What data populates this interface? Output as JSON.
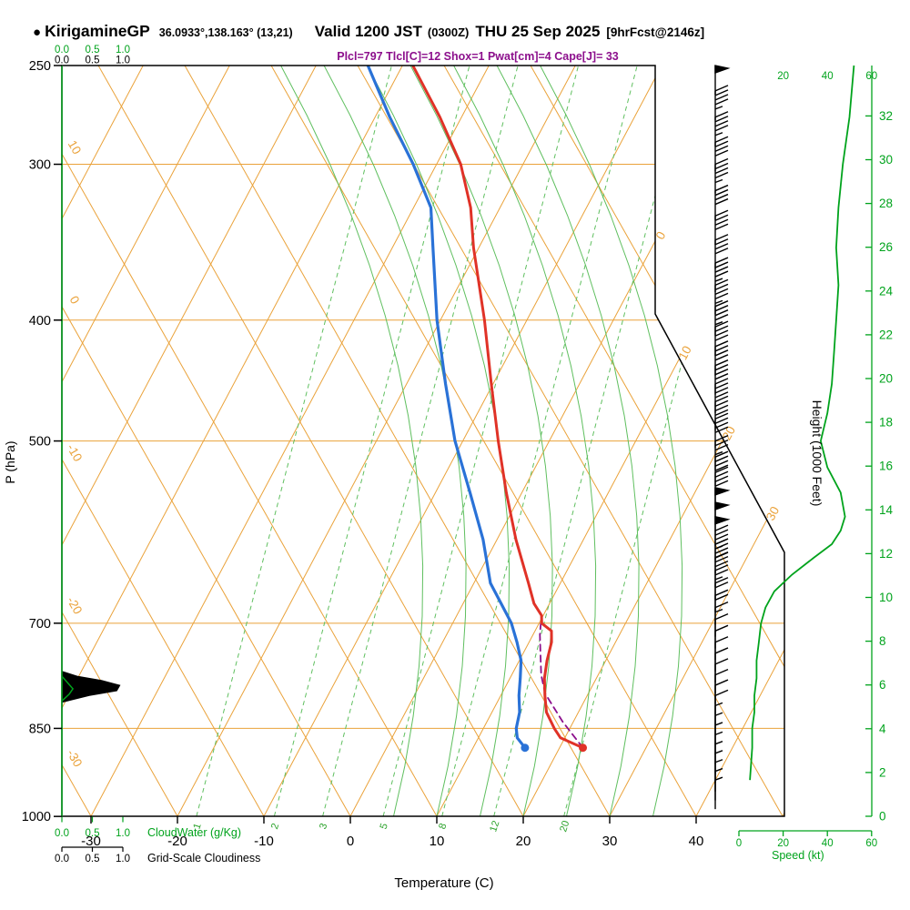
{
  "header": {
    "bullet": "●",
    "station": "KirigamineGP",
    "coords": "36.0933°,138.163° (13,21)",
    "valid": "Valid 1200 JST",
    "valid_z": "(0300Z)",
    "date": "THU 25 Sep 2025",
    "fcst": "[9hrFcst@2146z]",
    "params": "Plcl=797 Tlcl[C]=12 Shox=1 Pwat[cm]=4 Cape[J]= 33"
  },
  "axes": {
    "pressure_title": "P (hPa)",
    "pressure_ticks": [
      250,
      300,
      400,
      500,
      700,
      850,
      1000
    ],
    "temp_title": "Temperature (C)",
    "temp_ticks": [
      -30,
      -20,
      -10,
      0,
      10,
      20,
      30,
      40
    ],
    "height_title": "Height (1000 Feet)",
    "height_ticks": [
      0,
      2,
      4,
      6,
      8,
      10,
      12,
      14,
      16,
      18,
      20,
      22,
      24,
      26,
      28,
      30,
      32
    ],
    "speed_title": "Speed (kt)",
    "speed_ticks": [
      0,
      20,
      40,
      60
    ],
    "speed_ticks_top": [
      20,
      40,
      60
    ],
    "cloudwater_title": "CloudWater (g/Kg)",
    "cloudwater_ticks": [
      "0.0",
      "0.5",
      "1.0"
    ],
    "cloudiness_title": "Grid-Scale Cloudiness",
    "cloudiness_ticks": [
      "0.0",
      "0.5",
      "1.0"
    ],
    "dry_adiabat_labels": [
      10,
      0,
      -10,
      -20,
      -30
    ],
    "isotherm_labels": [
      0,
      10,
      20,
      30
    ]
  },
  "colors": {
    "grid_orange": "#eaa23a",
    "green": "#00a31c",
    "green_light": "#5fbf5f",
    "green_mid": "#2da32d",
    "temp_red": "#e03227",
    "dewpoint_blue": "#2a72d7",
    "parcel_purple": "#8c0f8c",
    "black": "#000000"
  },
  "chart_data": {
    "type": "line",
    "subtype": "skew-t log-p thermodynamic sounding",
    "pressure_axis": {
      "unit": "hPa",
      "scale": "log",
      "min": 250,
      "max": 1000
    },
    "temp_axis": {
      "unit": "C",
      "min": -30,
      "max": 40
    },
    "height_axis": {
      "unit": "1000 Feet",
      "min": 0,
      "max": 32
    },
    "speed_axis": {
      "unit": "kt",
      "min": 0,
      "max": 60
    },
    "temperature_profile_p_c": [
      [
        250,
        -38.8
      ],
      [
        275,
        -32.5
      ],
      [
        300,
        -27.2
      ],
      [
        325,
        -23.4
      ],
      [
        350,
        -20.6
      ],
      [
        400,
        -14.9
      ],
      [
        450,
        -10.2
      ],
      [
        500,
        -5.9
      ],
      [
        550,
        -1.8
      ],
      [
        600,
        2.2
      ],
      [
        650,
        6.3
      ],
      [
        675,
        8.2
      ],
      [
        690,
        9.8
      ],
      [
        700,
        10.3
      ],
      [
        710,
        11.9
      ],
      [
        725,
        12.6
      ],
      [
        750,
        13.2
      ],
      [
        775,
        14.0
      ],
      [
        800,
        15.1
      ],
      [
        825,
        16.3
      ],
      [
        850,
        18.2
      ],
      [
        865,
        19.5
      ],
      [
        881,
        22.7
      ]
    ],
    "dewpoint_profile_p_c": [
      [
        250,
        -44.0
      ],
      [
        275,
        -38.3
      ],
      [
        300,
        -32.7
      ],
      [
        325,
        -28.0
      ],
      [
        350,
        -25.3
      ],
      [
        400,
        -20.4
      ],
      [
        450,
        -15.5
      ],
      [
        500,
        -10.9
      ],
      [
        550,
        -6.0
      ],
      [
        600,
        -1.6
      ],
      [
        650,
        1.9
      ],
      [
        675,
        4.4
      ],
      [
        700,
        6.8
      ],
      [
        725,
        8.6
      ],
      [
        750,
        10.2
      ],
      [
        775,
        11.2
      ],
      [
        800,
        12.1
      ],
      [
        825,
        13.2
      ],
      [
        850,
        13.8
      ],
      [
        865,
        14.5
      ],
      [
        881,
        16.0
      ]
    ],
    "parcel_path_p_c": [
      [
        881,
        22.7
      ],
      [
        840,
        18.8
      ],
      [
        797,
        15.0
      ],
      [
        770,
        13.4
      ],
      [
        740,
        12.0
      ],
      [
        715,
        10.8
      ],
      [
        700,
        10.2
      ]
    ],
    "wind_barbs_p_kt": [
      [
        250,
        50
      ],
      [
        262,
        45
      ],
      [
        275,
        45
      ],
      [
        288,
        42
      ],
      [
        300,
        45
      ],
      [
        315,
        40
      ],
      [
        330,
        40
      ],
      [
        345,
        42
      ],
      [
        360,
        43
      ],
      [
        375,
        45
      ],
      [
        390,
        45
      ],
      [
        405,
        42
      ],
      [
        420,
        42
      ],
      [
        435,
        40
      ],
      [
        450,
        42
      ],
      [
        465,
        40
      ],
      [
        480,
        38
      ],
      [
        500,
        36
      ],
      [
        515,
        38
      ],
      [
        530,
        42
      ],
      [
        545,
        48
      ],
      [
        560,
        50
      ],
      [
        575,
        48
      ],
      [
        590,
        45
      ],
      [
        605,
        40
      ],
      [
        620,
        32
      ],
      [
        635,
        25
      ],
      [
        650,
        20
      ],
      [
        665,
        18
      ],
      [
        680,
        15
      ],
      [
        695,
        12
      ],
      [
        710,
        12
      ],
      [
        725,
        10
      ],
      [
        740,
        10
      ],
      [
        755,
        10
      ],
      [
        770,
        8
      ],
      [
        785,
        8
      ],
      [
        800,
        8
      ],
      [
        815,
        7
      ],
      [
        830,
        6
      ],
      [
        845,
        6
      ],
      [
        860,
        5
      ],
      [
        875,
        5
      ],
      [
        890,
        5
      ],
      [
        905,
        4
      ],
      [
        920,
        4
      ],
      [
        935,
        4
      ]
    ],
    "wind_speed_profile_p_kt": [
      [
        250,
        52
      ],
      [
        275,
        50
      ],
      [
        300,
        47
      ],
      [
        325,
        45
      ],
      [
        350,
        44
      ],
      [
        375,
        45
      ],
      [
        400,
        44
      ],
      [
        425,
        43
      ],
      [
        450,
        42
      ],
      [
        475,
        40
      ],
      [
        500,
        37
      ],
      [
        525,
        40
      ],
      [
        550,
        46
      ],
      [
        575,
        48
      ],
      [
        590,
        46
      ],
      [
        605,
        42
      ],
      [
        620,
        34
      ],
      [
        640,
        24
      ],
      [
        660,
        16
      ],
      [
        680,
        12
      ],
      [
        700,
        10
      ],
      [
        725,
        9
      ],
      [
        750,
        8
      ],
      [
        775,
        8
      ],
      [
        800,
        7
      ],
      [
        825,
        7
      ],
      [
        850,
        6
      ],
      [
        881,
        6
      ],
      [
        935,
        5
      ]
    ],
    "cloudiness_profile_p_frac": [
      [
        765,
        0
      ],
      [
        772,
        0.25
      ],
      [
        778,
        0.65
      ],
      [
        785,
        0.95
      ],
      [
        793,
        0.9
      ],
      [
        800,
        0.45
      ],
      [
        810,
        0
      ]
    ],
    "cloud_water_profile_p_gkg": [
      [
        772,
        0
      ],
      [
        782,
        0.1
      ],
      [
        790,
        0.18
      ],
      [
        798,
        0.12
      ],
      [
        808,
        0
      ]
    ],
    "mixing_ratio_lines": [
      {
        "g_kg": 1,
        "td_1000": -17.8
      },
      {
        "g_kg": 2,
        "td_1000": -8.8
      },
      {
        "g_kg": 3,
        "td_1000": -3.2
      },
      {
        "g_kg": 5,
        "td_1000": 3.8
      },
      {
        "g_kg": 8,
        "td_1000": 10.6
      },
      {
        "g_kg": 12,
        "td_1000": 16.6
      },
      {
        "g_kg": 20,
        "td_1000": 24.7
      }
    ],
    "moist_adiabats_c": [
      5,
      10,
      15,
      20,
      25,
      30,
      35
    ],
    "surface": {
      "pressure_hpa": 881,
      "temp_c": 22.7,
      "dewpoint_c": 16.0
    },
    "indices": {
      "plcl_hpa": 797,
      "tlcl_c": 12,
      "showalter_index": 1,
      "pwat_cm": 4,
      "cape_j": 33
    }
  }
}
